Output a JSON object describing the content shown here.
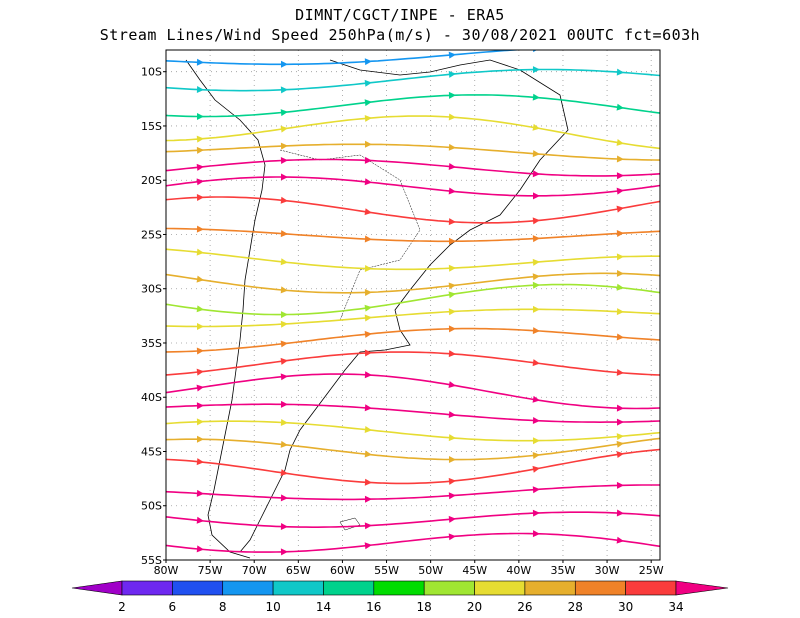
{
  "title_line1": "DIMNT/CGCT/INPE  -  ERA5",
  "title_line2": "Stream Lines/Wind Speed 250hPa(m/s)  -  30/08/2021 00UTC fct=603h",
  "lat_labels": [
    "10S",
    "15S",
    "20S",
    "25S",
    "30S",
    "35S",
    "40S",
    "45S",
    "50S",
    "55S"
  ],
  "lon_labels": [
    "80W",
    "75W",
    "70W",
    "65W",
    "60W",
    "55W",
    "50W",
    "45W",
    "40W",
    "35W",
    "30W",
    "25W"
  ],
  "colorbar": {
    "labels": [
      "2",
      "6",
      "8",
      "10",
      "14",
      "16",
      "18",
      "20",
      "26",
      "28",
      "30",
      "34"
    ],
    "colors": [
      "#a000c8",
      "#6e28f0",
      "#2050f0",
      "#1496f0",
      "#10c8c8",
      "#00d28c",
      "#00dc00",
      "#a0e632",
      "#e6dc32",
      "#e6af2d",
      "#f08228",
      "#fa3c3c",
      "#f00082"
    ]
  },
  "streamlines": [
    {
      "lat": -9,
      "speed_class": 3
    },
    {
      "lat": -11,
      "speed_class": 4
    },
    {
      "lat": -13,
      "speed_class": 5
    },
    {
      "lat": -15,
      "speed_class": 8
    },
    {
      "lat": -17,
      "speed_class": 9
    },
    {
      "lat": -19,
      "speed_class": 12
    },
    {
      "lat": -21,
      "speed_class": 12
    },
    {
      "lat": -23,
      "speed_class": 11
    },
    {
      "lat": -25,
      "speed_class": 10
    },
    {
      "lat": -27,
      "speed_class": 8
    },
    {
      "lat": -29,
      "speed_class": 9
    },
    {
      "lat": -31,
      "speed_class": 7
    },
    {
      "lat": -33,
      "speed_class": 8
    },
    {
      "lat": -35,
      "speed_class": 10
    },
    {
      "lat": -37,
      "speed_class": 11
    },
    {
      "lat": -39,
      "speed_class": 12
    },
    {
      "lat": -41,
      "speed_class": 12
    },
    {
      "lat": -43,
      "speed_class": 8
    },
    {
      "lat": -45,
      "speed_class": 9
    },
    {
      "lat": -47,
      "speed_class": 11
    },
    {
      "lat": -49,
      "speed_class": 12
    },
    {
      "lat": -51,
      "speed_class": 12
    },
    {
      "lat": -53,
      "speed_class": 12
    }
  ]
}
